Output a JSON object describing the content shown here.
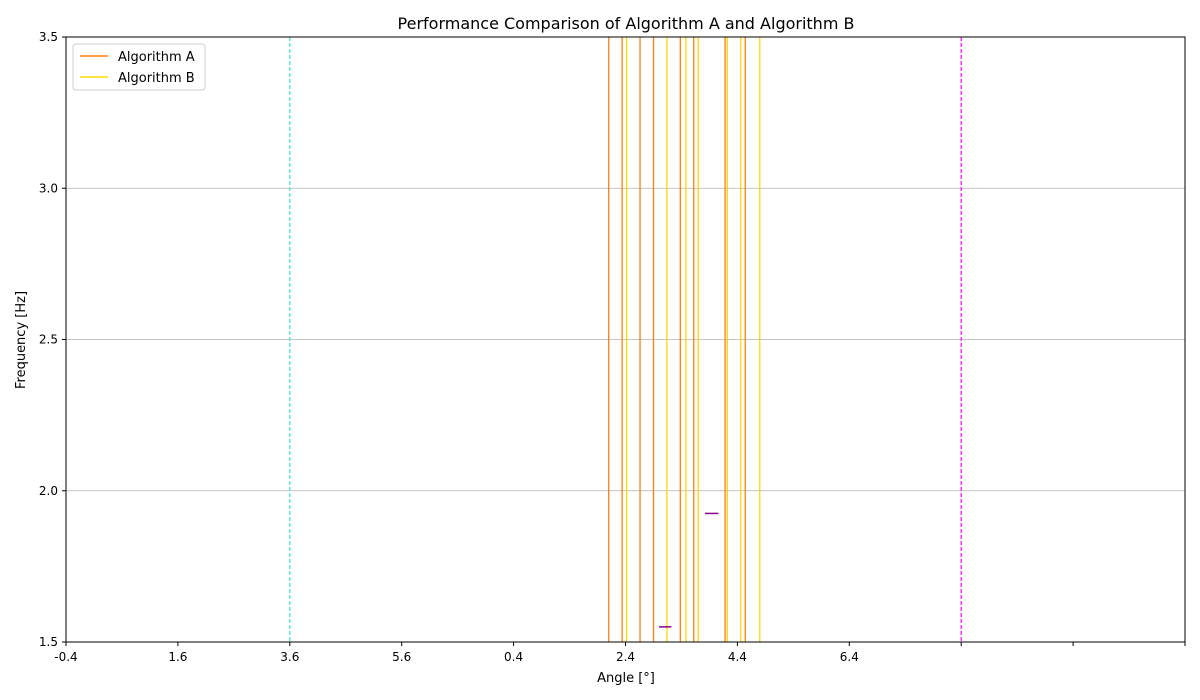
{
  "chart_data": {
    "type": "line",
    "title": "Performance Comparison of Algorithm A and Algorithm B",
    "xlabel": "Angle [°]",
    "ylabel": "Frequency [Hz]",
    "xlim": [
      -0.4,
      9.6
    ],
    "ylim": [
      1.5,
      3.5
    ],
    "x_ticks": [
      {
        "value": -0.4,
        "label": "-0.4"
      },
      {
        "value": 0.6,
        "label": "1.6"
      },
      {
        "value": 1.6,
        "label": "3.6"
      },
      {
        "value": 2.6,
        "label": "5.6"
      },
      {
        "value": 3.6,
        "label": "0.4"
      },
      {
        "value": 4.6,
        "label": "2.4"
      },
      {
        "value": 5.6,
        "label": "4.4"
      },
      {
        "value": 6.6,
        "label": "6.4"
      },
      {
        "value": 7.6,
        "label": ""
      },
      {
        "value": 8.6,
        "label": ""
      },
      {
        "value": 9.6,
        "label": ""
      }
    ],
    "y_ticks": [
      {
        "value": 1.5,
        "label": "1.5"
      },
      {
        "value": 2.0,
        "label": "2.0"
      },
      {
        "value": 2.5,
        "label": "2.5"
      },
      {
        "value": 3.0,
        "label": "3.0"
      },
      {
        "value": 3.5,
        "label": "3.5"
      }
    ],
    "grid": "y",
    "legend_position": "upper-left",
    "series": [
      {
        "name": "Algorithm A",
        "color": "#ff7f0e",
        "vlines_x": [
          4.45,
          4.57,
          4.73,
          4.85,
          5.09,
          5.21,
          5.49,
          5.67
        ]
      },
      {
        "name": "Algorithm B",
        "color": "#ffd700",
        "vlines_x": [
          4.61,
          4.97,
          5.14,
          5.25,
          5.51,
          5.63,
          5.8
        ]
      }
    ],
    "reference_lines": [
      {
        "x": 1.6,
        "color": "#40e0d0",
        "style": "dashed"
      },
      {
        "x": 7.6,
        "color": "#ff00ff",
        "style": "dashed"
      }
    ],
    "markers": [
      {
        "x_start": 4.9,
        "x_end": 5.01,
        "y": 1.55,
        "color": "#8b008b"
      },
      {
        "x_start": 5.31,
        "x_end": 5.43,
        "y": 1.925,
        "color": "#8b008b"
      }
    ]
  }
}
